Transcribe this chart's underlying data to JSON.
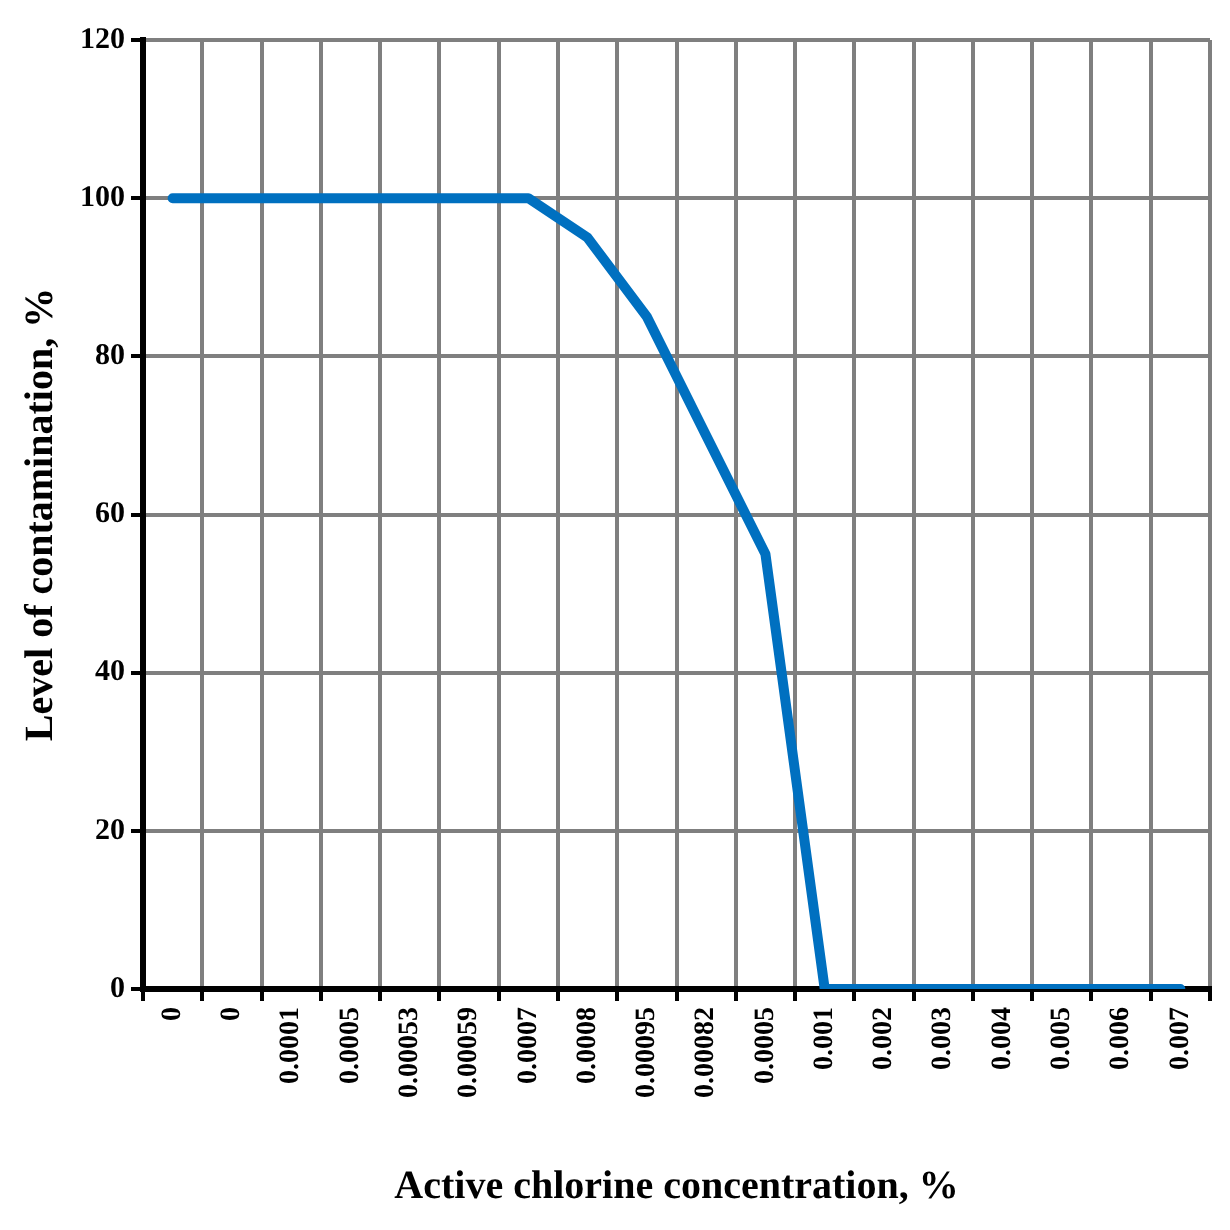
{
  "chart_data": {
    "type": "line",
    "xlabel": "Active chlorine concentration, %",
    "ylabel": "Level of contamination, %",
    "categories": [
      "0",
      "0",
      "0.0001",
      "0.0005",
      "0.00053",
      "0.00059",
      "0.0007",
      "0.0008",
      "0.00095",
      "0.00082",
      "0.0005",
      "0.001",
      "0.002",
      "0.003",
      "0.004",
      "0.005",
      "0.006",
      "0.007"
    ],
    "series": [
      {
        "color": "#0070c0",
        "values": [
          100,
          100,
          100,
          100,
          100,
          100,
          100,
          95,
          85,
          70,
          55,
          0,
          0,
          0,
          0,
          0,
          0,
          0
        ]
      }
    ],
    "ylim": [
      0,
      120
    ],
    "yticks": [
      0,
      20,
      40,
      60,
      80,
      100,
      120
    ],
    "grid": true,
    "legend": false,
    "marker": "none",
    "line_style": "solid"
  }
}
